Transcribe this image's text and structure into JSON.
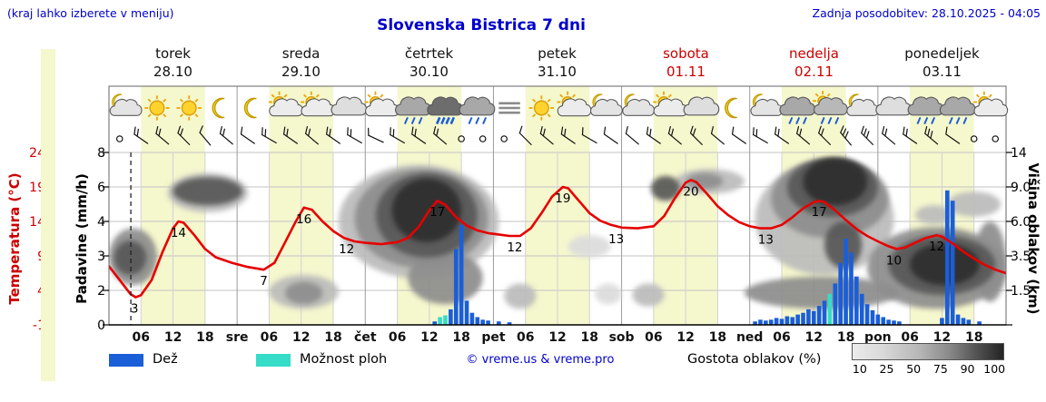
{
  "header": {
    "hint": "(kraj lahko izberete v meniju)",
    "title": "Slovenska Bistrica 7 dni",
    "updated": "Zadnja posodobitev: 28.10.2025 - 04:05"
  },
  "axes": {
    "temp_label": "Temperatura (°C)",
    "precip_label": "Padavine (mm/h)",
    "cloud_label": "Višina oblakov (km)",
    "temp_ticks": [
      "24",
      "19",
      "14",
      "9",
      "4",
      "-1"
    ],
    "precip_ticks": [
      "8",
      "6",
      "4",
      "3",
      "2",
      "0"
    ],
    "cloud_ticks": [
      "14",
      "9.0",
      "6.0",
      "3.5",
      "1.5"
    ]
  },
  "days": [
    {
      "name": "torek",
      "date": "28.10",
      "weekend": false
    },
    {
      "name": "sreda",
      "date": "29.10",
      "weekend": false
    },
    {
      "name": "četrtek",
      "date": "30.10",
      "weekend": false
    },
    {
      "name": "petek",
      "date": "31.10",
      "weekend": false
    },
    {
      "name": "sobota",
      "date": "01.11",
      "weekend": true
    },
    {
      "name": "nedelja",
      "date": "02.11",
      "weekend": true
    },
    {
      "name": "ponedeljek",
      "date": "03.11",
      "weekend": false
    }
  ],
  "legend": {
    "rain": "Dež",
    "showers": "Možnost ploh",
    "copyright": "© vreme.us & vreme.pro",
    "cloud_density": "Gostota oblakov (%)",
    "density_ticks": [
      "10",
      "25",
      "50",
      "75",
      "90",
      "100"
    ]
  },
  "colors": {
    "day_band": "#f5f7cd",
    "rain": "#1a5ed8",
    "shower": "#35dcc8",
    "temp_line": "#e60000",
    "axis_red": "#cc0000",
    "blue_text": "#0000cc"
  },
  "chart_data": {
    "type": "line",
    "subtype": "meteogram",
    "x_hours_range": [
      0,
      168
    ],
    "scales": {
      "temp": {
        "min": -1,
        "max": 24
      },
      "precip_levels": [
        0,
        2,
        3,
        4,
        6,
        8
      ],
      "cloud_levels": [
        0,
        1.5,
        3.5,
        6,
        9,
        14
      ]
    },
    "now_line_t": 4.1,
    "day_bands": [
      {
        "t0": 6,
        "t1": 18
      },
      {
        "t0": 30,
        "t1": 42
      },
      {
        "t0": 54,
        "t1": 66
      },
      {
        "t0": 78,
        "t1": 90
      },
      {
        "t0": 102,
        "t1": 114
      },
      {
        "t0": 126,
        "t1": 138
      },
      {
        "t0": 150,
        "t1": 162
      }
    ],
    "time_axis": [
      {
        "t": 6,
        "label": "06"
      },
      {
        "t": 12,
        "label": "12"
      },
      {
        "t": 18,
        "label": "18"
      },
      {
        "t": 24,
        "label": "sre"
      },
      {
        "t": 30,
        "label": "06"
      },
      {
        "t": 36,
        "label": "12"
      },
      {
        "t": 42,
        "label": "18"
      },
      {
        "t": 48,
        "label": "čet"
      },
      {
        "t": 54,
        "label": "06"
      },
      {
        "t": 60,
        "label": "12"
      },
      {
        "t": 66,
        "label": "18"
      },
      {
        "t": 72,
        "label": "pet"
      },
      {
        "t": 78,
        "label": "06"
      },
      {
        "t": 84,
        "label": "12"
      },
      {
        "t": 90,
        "label": "18"
      },
      {
        "t": 96,
        "label": "sob"
      },
      {
        "t": 102,
        "label": "06"
      },
      {
        "t": 108,
        "label": "12"
      },
      {
        "t": 114,
        "label": "18"
      },
      {
        "t": 120,
        "label": "ned"
      },
      {
        "t": 126,
        "label": "06"
      },
      {
        "t": 132,
        "label": "12"
      },
      {
        "t": 138,
        "label": "18"
      },
      {
        "t": 144,
        "label": "pon"
      },
      {
        "t": 150,
        "label": "06"
      },
      {
        "t": 156,
        "label": "12"
      },
      {
        "t": 162,
        "label": "18"
      }
    ],
    "temperature": {
      "unit": "°C",
      "series": [
        [
          0,
          7.5
        ],
        [
          2,
          5.5
        ],
        [
          4,
          3.5
        ],
        [
          5,
          3
        ],
        [
          6,
          3.3
        ],
        [
          8,
          5.5
        ],
        [
          10,
          9.5
        ],
        [
          12,
          13
        ],
        [
          13,
          14
        ],
        [
          14,
          13.8
        ],
        [
          16,
          12
        ],
        [
          18,
          10
        ],
        [
          20,
          8.8
        ],
        [
          23,
          8
        ],
        [
          26,
          7.4
        ],
        [
          29,
          7
        ],
        [
          31,
          8
        ],
        [
          33,
          11
        ],
        [
          35,
          14
        ],
        [
          36.5,
          16
        ],
        [
          38,
          15.7
        ],
        [
          40,
          14
        ],
        [
          42,
          12.6
        ],
        [
          44,
          11.6
        ],
        [
          46,
          11.1
        ],
        [
          48,
          10.9
        ],
        [
          51,
          10.7
        ],
        [
          54,
          11
        ],
        [
          56,
          11.6
        ],
        [
          58,
          13.2
        ],
        [
          60,
          15.6
        ],
        [
          61.5,
          17
        ],
        [
          63,
          16.4
        ],
        [
          65,
          14.6
        ],
        [
          67,
          13.4
        ],
        [
          69,
          12.7
        ],
        [
          71,
          12.3
        ],
        [
          73,
          12.1
        ],
        [
          75,
          11.9
        ],
        [
          77,
          11.9
        ],
        [
          79,
          13
        ],
        [
          81,
          15.2
        ],
        [
          83,
          17.6
        ],
        [
          85,
          19
        ],
        [
          86,
          18.8
        ],
        [
          88,
          17
        ],
        [
          90,
          15.2
        ],
        [
          92,
          14.1
        ],
        [
          94,
          13.5
        ],
        [
          96,
          13.1
        ],
        [
          99,
          13
        ],
        [
          102,
          13.3
        ],
        [
          104,
          14.8
        ],
        [
          106,
          17.4
        ],
        [
          108,
          19.6
        ],
        [
          109,
          20
        ],
        [
          110,
          19.7
        ],
        [
          112,
          18
        ],
        [
          114,
          16.2
        ],
        [
          116,
          14.9
        ],
        [
          118,
          13.9
        ],
        [
          120,
          13.3
        ],
        [
          122,
          13
        ],
        [
          124,
          13
        ],
        [
          126,
          13.5
        ],
        [
          128,
          14.6
        ],
        [
          130,
          15.9
        ],
        [
          132,
          16.8
        ],
        [
          133,
          17
        ],
        [
          134,
          16.8
        ],
        [
          136,
          15.6
        ],
        [
          138,
          14.2
        ],
        [
          140,
          12.9
        ],
        [
          142,
          11.9
        ],
        [
          144,
          11.1
        ],
        [
          146,
          10.4
        ],
        [
          147.5,
          10
        ],
        [
          149,
          10.2
        ],
        [
          151,
          10.9
        ],
        [
          153,
          11.6
        ],
        [
          155,
          12
        ],
        [
          156,
          11.8
        ],
        [
          158,
          10.8
        ],
        [
          160,
          9.6
        ],
        [
          162,
          8.6
        ],
        [
          164,
          7.7
        ],
        [
          166,
          7
        ],
        [
          168,
          6.5
        ]
      ],
      "annotations": [
        {
          "t": 4.8,
          "v": 3,
          "label": "3"
        },
        {
          "t": 13,
          "v": 14,
          "label": "14"
        },
        {
          "t": 29,
          "v": 7,
          "label": "7"
        },
        {
          "t": 36.5,
          "v": 16,
          "label": "16"
        },
        {
          "t": 44.5,
          "v": 11.6,
          "label": "12"
        },
        {
          "t": 61.5,
          "v": 17,
          "label": "17"
        },
        {
          "t": 76,
          "v": 11.9,
          "label": "12"
        },
        {
          "t": 85,
          "v": 19,
          "label": "19"
        },
        {
          "t": 95,
          "v": 13.1,
          "label": "13"
        },
        {
          "t": 109,
          "v": 20,
          "label": "20"
        },
        {
          "t": 123,
          "v": 13,
          "label": "13"
        },
        {
          "t": 133,
          "v": 17,
          "label": "17"
        },
        {
          "t": 147,
          "v": 10,
          "label": "10"
        },
        {
          "t": 155,
          "v": 12,
          "label": "12"
        }
      ]
    },
    "precipitation": {
      "unit": "mm/h",
      "bars": [
        {
          "t": 61,
          "v": 0.2
        },
        {
          "t": 62,
          "v": 0.45,
          "type": "shower"
        },
        {
          "t": 63,
          "v": 0.55,
          "type": "shower"
        },
        {
          "t": 64,
          "v": 0.9
        },
        {
          "t": 65,
          "v": 3.2
        },
        {
          "t": 66,
          "v": 3.9
        },
        {
          "t": 67,
          "v": 1.4
        },
        {
          "t": 68,
          "v": 0.7
        },
        {
          "t": 69,
          "v": 0.45
        },
        {
          "t": 70,
          "v": 0.3
        },
        {
          "t": 71,
          "v": 0.25
        },
        {
          "t": 73,
          "v": 0.2
        },
        {
          "t": 75,
          "v": 0.15
        },
        {
          "t": 121,
          "v": 0.2
        },
        {
          "t": 122,
          "v": 0.3
        },
        {
          "t": 123,
          "v": 0.25
        },
        {
          "t": 124,
          "v": 0.3
        },
        {
          "t": 125,
          "v": 0.4
        },
        {
          "t": 126,
          "v": 0.35
        },
        {
          "t": 127,
          "v": 0.5
        },
        {
          "t": 128,
          "v": 0.45
        },
        {
          "t": 129,
          "v": 0.6
        },
        {
          "t": 130,
          "v": 0.7
        },
        {
          "t": 131,
          "v": 0.9
        },
        {
          "t": 132,
          "v": 0.8
        },
        {
          "t": 133,
          "v": 1.1
        },
        {
          "t": 134,
          "v": 1.4
        },
        {
          "t": 135,
          "v": 1.8,
          "type": "shower"
        },
        {
          "t": 136,
          "v": 2.2
        },
        {
          "t": 137,
          "v": 2.8
        },
        {
          "t": 138,
          "v": 3.5
        },
        {
          "t": 139,
          "v": 3.1
        },
        {
          "t": 140,
          "v": 2.4
        },
        {
          "t": 141,
          "v": 1.8
        },
        {
          "t": 142,
          "v": 1.2
        },
        {
          "t": 143,
          "v": 0.85
        },
        {
          "t": 144,
          "v": 0.6
        },
        {
          "t": 145,
          "v": 0.45
        },
        {
          "t": 146,
          "v": 0.3
        },
        {
          "t": 147,
          "v": 0.25
        },
        {
          "t": 148,
          "v": 0.2
        },
        {
          "t": 156,
          "v": 0.4
        },
        {
          "t": 157,
          "v": 5.8
        },
        {
          "t": 158,
          "v": 5.2
        },
        {
          "t": 159,
          "v": 0.6
        },
        {
          "t": 160,
          "v": 0.4
        },
        {
          "t": 161,
          "v": 0.3
        },
        {
          "t": 163,
          "v": 0.2
        }
      ]
    },
    "clouds": [
      {
        "t0": 0,
        "t1": 9,
        "k0": 1.8,
        "k1": 5.5,
        "d": 3
      },
      {
        "t0": 1,
        "t1": 7,
        "k0": 2.4,
        "k1": 4.6,
        "d": 4
      },
      {
        "t0": 11,
        "t1": 26,
        "k0": 6.8,
        "k1": 11,
        "d": 2
      },
      {
        "t0": 12,
        "t1": 25,
        "k0": 7.4,
        "k1": 10.4,
        "d": 4
      },
      {
        "t0": 30,
        "t1": 43,
        "k0": 0.7,
        "k1": 2.4,
        "d": 2
      },
      {
        "t0": 33,
        "t1": 40,
        "k0": 0.9,
        "k1": 2,
        "d": 3
      },
      {
        "t0": 43,
        "t1": 73,
        "k0": 2.2,
        "k1": 12.2,
        "d": 2
      },
      {
        "t0": 46,
        "t1": 71,
        "k0": 2.8,
        "k1": 11.6,
        "d": 3
      },
      {
        "t0": 50,
        "t1": 69,
        "k0": 3.4,
        "k1": 11,
        "d": 4
      },
      {
        "t0": 53,
        "t1": 66,
        "k0": 4.5,
        "k1": 10.2,
        "d": 5
      },
      {
        "t0": 56,
        "t1": 70,
        "k0": 0.9,
        "k1": 3.8,
        "d": 3
      },
      {
        "t0": 74,
        "t1": 80,
        "k0": 0.7,
        "k1": 1.9,
        "d": 2
      },
      {
        "t0": 86,
        "t1": 94,
        "k0": 3.4,
        "k1": 5,
        "d": 1
      },
      {
        "t0": 91,
        "t1": 96,
        "k0": 0.9,
        "k1": 1.9,
        "d": 1
      },
      {
        "t0": 98,
        "t1": 104,
        "k0": 0.8,
        "k1": 1.9,
        "d": 2
      },
      {
        "t0": 101.5,
        "t1": 107,
        "k0": 7.8,
        "k1": 10.6,
        "d": 4
      },
      {
        "t0": 106,
        "t1": 119,
        "k0": 8.4,
        "k1": 11.6,
        "d": 2
      },
      {
        "t0": 108,
        "t1": 115,
        "k0": 8.8,
        "k1": 11,
        "d": 3
      },
      {
        "t0": 119,
        "t1": 148,
        "k0": 0.7,
        "k1": 2.3,
        "d": 3
      },
      {
        "t0": 121,
        "t1": 147,
        "k0": 2.4,
        "k1": 12.4,
        "d": 2
      },
      {
        "t0": 124,
        "t1": 146,
        "k0": 4.8,
        "k1": 13,
        "d": 3
      },
      {
        "t0": 127,
        "t1": 144,
        "k0": 6.4,
        "k1": 13.2,
        "d": 4
      },
      {
        "t0": 130,
        "t1": 142,
        "k0": 7.4,
        "k1": 13.2,
        "d": 5
      },
      {
        "t0": 134,
        "t1": 141,
        "k0": 2.8,
        "k1": 6,
        "d": 4
      },
      {
        "t0": 142,
        "t1": 168,
        "k0": 0.7,
        "k1": 5.6,
        "d": 3
      },
      {
        "t0": 146,
        "t1": 166,
        "k0": 1.3,
        "k1": 5,
        "d": 4
      },
      {
        "t0": 150,
        "t1": 163,
        "k0": 1.8,
        "k1": 4.4,
        "d": 5
      },
      {
        "t0": 151,
        "t1": 158,
        "k0": 5.8,
        "k1": 7.4,
        "d": 2
      },
      {
        "t0": 157,
        "t1": 167,
        "k0": 6.4,
        "k1": 8.6,
        "d": 2
      },
      {
        "t0": 162,
        "t1": 168,
        "k0": 1,
        "k1": 6,
        "d": 3
      }
    ],
    "icons": [
      {
        "t": 3,
        "type": "moon-cloud"
      },
      {
        "t": 9,
        "type": "sun"
      },
      {
        "t": 15,
        "type": "sun"
      },
      {
        "t": 21,
        "type": "moon"
      },
      {
        "t": 27,
        "type": "moon"
      },
      {
        "t": 33,
        "type": "sun-cloud"
      },
      {
        "t": 39,
        "type": "sun-cloud"
      },
      {
        "t": 45,
        "type": "cloud"
      },
      {
        "t": 51,
        "type": "sun-cloud"
      },
      {
        "t": 57,
        "type": "cloud-rain"
      },
      {
        "t": 63,
        "type": "cloud-heavy-rain"
      },
      {
        "t": 69,
        "type": "cloud-rain"
      },
      {
        "t": 75,
        "type": "fog"
      },
      {
        "t": 81,
        "type": "sun"
      },
      {
        "t": 87,
        "type": "sun-cloud"
      },
      {
        "t": 93,
        "type": "moon-cloud"
      },
      {
        "t": 99,
        "type": "moon-cloud"
      },
      {
        "t": 105,
        "type": "sun-cloud"
      },
      {
        "t": 111,
        "type": "cloud"
      },
      {
        "t": 117,
        "type": "moon"
      },
      {
        "t": 123,
        "type": "moon-cloud"
      },
      {
        "t": 129,
        "type": "cloud-rain"
      },
      {
        "t": 135,
        "type": "sun-rain"
      },
      {
        "t": 141,
        "type": "moon-cloud"
      },
      {
        "t": 147,
        "type": "cloud"
      },
      {
        "t": 153,
        "type": "cloud-rain"
      },
      {
        "t": 159,
        "type": "cloud-rain"
      },
      {
        "t": 165,
        "type": "sun-cloud"
      }
    ],
    "wind_tsd": [
      [
        2,
        0,
        0
      ],
      [
        6,
        2,
        -55
      ],
      [
        10,
        2,
        -50
      ],
      [
        14,
        2,
        -45
      ],
      [
        18,
        1,
        -40
      ],
      [
        22,
        2,
        -50
      ],
      [
        26,
        1,
        -55
      ],
      [
        30,
        2,
        -60
      ],
      [
        34,
        2,
        -55
      ],
      [
        38,
        2,
        -50
      ],
      [
        42,
        2,
        -55
      ],
      [
        46,
        2,
        -60
      ],
      [
        50,
        1,
        -65
      ],
      [
        54,
        2,
        -60
      ],
      [
        58,
        2,
        -55
      ],
      [
        62,
        2,
        -50
      ],
      [
        66,
        0,
        0
      ],
      [
        70,
        0,
        0
      ],
      [
        74,
        0,
        0
      ],
      [
        78,
        1,
        -45
      ],
      [
        82,
        2,
        -50
      ],
      [
        86,
        2,
        -55
      ],
      [
        90,
        1,
        -60
      ],
      [
        94,
        1,
        -55
      ],
      [
        98,
        1,
        -50
      ],
      [
        102,
        2,
        -55
      ],
      [
        106,
        2,
        -50
      ],
      [
        110,
        2,
        -45
      ],
      [
        114,
        1,
        -50
      ],
      [
        118,
        1,
        -55
      ],
      [
        122,
        2,
        -60
      ],
      [
        126,
        2,
        -55
      ],
      [
        130,
        2,
        -50
      ],
      [
        134,
        2,
        -45
      ],
      [
        138,
        3,
        -40
      ],
      [
        142,
        3,
        -45
      ],
      [
        146,
        2,
        -50
      ],
      [
        150,
        2,
        -55
      ],
      [
        154,
        3,
        -50
      ],
      [
        158,
        1,
        -55
      ],
      [
        162,
        0,
        0
      ],
      [
        166,
        0,
        0
      ]
    ]
  }
}
